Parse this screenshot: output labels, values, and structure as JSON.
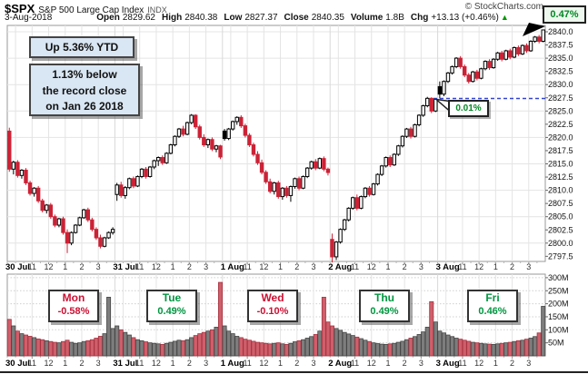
{
  "header": {
    "symbol": "$SPX",
    "name": "S&P 500 Large Cap Index",
    "exchange": "INDX",
    "copyright": "© StockCharts.com",
    "date": "3-Aug-2018",
    "quote": [
      {
        "label": "Open",
        "value": "2829.62"
      },
      {
        "label": "High",
        "value": "2840.38"
      },
      {
        "label": "Low",
        "value": "2827.37"
      },
      {
        "label": "Close",
        "value": "2840.35"
      },
      {
        "label": "Volume",
        "value": "1.8B"
      },
      {
        "label": "Chg",
        "value": "+13.13 (+0.46%)"
      }
    ],
    "up_arrow": "▲",
    "badge": "0.47%"
  },
  "annotations": {
    "ytd": "Up 5.36% YTD",
    "record_lines": [
      "1.13% below",
      "the record close",
      "on Jan 26 2018"
    ],
    "callout": "0.01%",
    "dashed_line_price": 2827.37
  },
  "colors": {
    "candle_down": "#cc2236",
    "candle_up_border": "#000000",
    "vol_down_fill": "#ce5f6b",
    "vol_down_border": "#a83240",
    "vol_up_fill": "#7d7d7d",
    "vol_up_border": "#454545",
    "text_up": "#009640",
    "text_down": "#cc1133",
    "dashed_line": "#3344cc",
    "grid": "#e4e4e4",
    "panel_border": "#9a9a9a"
  },
  "chart_data": {
    "type": "candlestick+volume",
    "timeframe": "15-minute intraday, 5 sessions",
    "price_axis": {
      "min": 2797.5,
      "max": 2840.0,
      "tick_step": 2.5,
      "ticks": [
        "2840.0",
        "2837.5",
        "2835.0",
        "2832.5",
        "2830.0",
        "2827.5",
        "2825.0",
        "2822.5",
        "2820.0",
        "2817.5",
        "2815.0",
        "2812.5",
        "2810.0",
        "2807.5",
        "2805.0",
        "2802.5",
        "2800.0",
        "2797.5"
      ]
    },
    "volume_axis": {
      "ticks": [
        "300M",
        "250M",
        "200M",
        "150M",
        "100M",
        "50M"
      ],
      "values": [
        300,
        250,
        200,
        150,
        100,
        50
      ]
    },
    "x_labels": {
      "hour_labels": [
        "11",
        "12",
        "1",
        "2",
        "3"
      ]
    },
    "days": [
      {
        "date": "30 Jul",
        "weekday": "Mon",
        "change_pct": "-0.58%",
        "direction": "down",
        "candles": [
          [
            2821.2,
            2821.84,
            2813.5,
            2814.0
          ],
          [
            2814.0,
            2815.6,
            2813.0,
            2815.3
          ],
          [
            2815.3,
            2815.7,
            2812.4,
            2812.8
          ],
          [
            2812.8,
            2814.0,
            2812.2,
            2813.8
          ],
          [
            2813.8,
            2814.2,
            2811.0,
            2811.4
          ],
          [
            2811.4,
            2811.8,
            2809.0,
            2809.4
          ],
          [
            2809.4,
            2810.6,
            2808.8,
            2810.4
          ],
          [
            2810.4,
            2810.8,
            2807.6,
            2808.0
          ],
          [
            2808.0,
            2808.4,
            2805.8,
            2806.2
          ],
          [
            2806.2,
            2807.4,
            2805.6,
            2807.2
          ],
          [
            2807.2,
            2807.6,
            2804.6,
            2805.0
          ],
          [
            2805.0,
            2805.4,
            2803.0,
            2803.4
          ],
          [
            2803.4,
            2804.8,
            2803.0,
            2804.6
          ],
          [
            2804.6,
            2805.0,
            2801.6,
            2802.0
          ],
          [
            2802.0,
            2802.6,
            2798.11,
            2800.0
          ],
          [
            2800.0,
            2802.2,
            2799.6,
            2802.0
          ],
          [
            2802.0,
            2803.6,
            2801.8,
            2803.4
          ],
          [
            2803.4,
            2805.0,
            2803.2,
            2804.8
          ],
          [
            2804.8,
            2806.5,
            2804.6,
            2806.3
          ],
          [
            2806.3,
            2806.7,
            2804.0,
            2804.4
          ],
          [
            2804.4,
            2804.8,
            2802.2,
            2802.6
          ],
          [
            2802.6,
            2803.0,
            2800.6,
            2801.0
          ],
          [
            2801.0,
            2801.6,
            2799.0,
            2799.4
          ],
          [
            2799.4,
            2801.2,
            2799.2,
            2801.0
          ],
          [
            2801.0,
            2802.2,
            2800.8,
            2802.0
          ],
          [
            2802.0,
            2803.0,
            2801.6,
            2802.6
          ]
        ],
        "volumes": [
          140,
          115,
          95,
          85,
          80,
          75,
          70,
          65,
          62,
          58,
          55,
          52,
          50,
          55,
          60,
          52,
          48,
          50,
          55,
          58,
          62,
          68,
          75,
          85,
          225,
          105
        ]
      },
      {
        "date": "31 Jul",
        "weekday": "Tue",
        "change_pct": "0.49%",
        "direction": "up",
        "candles": [
          [
            2809.2,
            2811.4,
            2808.0,
            2811.0
          ],
          [
            2811.0,
            2811.6,
            2808.6,
            2809.0
          ],
          [
            2809.0,
            2810.8,
            2808.4,
            2810.5
          ],
          [
            2810.5,
            2812.4,
            2810.2,
            2812.2
          ],
          [
            2812.2,
            2812.6,
            2810.4,
            2810.8
          ],
          [
            2810.8,
            2812.8,
            2810.6,
            2812.6
          ],
          [
            2812.6,
            2814.2,
            2812.3,
            2814.0
          ],
          [
            2814.0,
            2814.4,
            2812.2,
            2812.6
          ],
          [
            2812.6,
            2814.6,
            2812.4,
            2814.4
          ],
          [
            2814.4,
            2815.8,
            2814.0,
            2815.6
          ],
          [
            2815.6,
            2816.4,
            2814.6,
            2816.2
          ],
          [
            2816.2,
            2816.6,
            2814.8,
            2815.2
          ],
          [
            2815.2,
            2817.2,
            2815.0,
            2817.0
          ],
          [
            2817.0,
            2818.8,
            2816.8,
            2818.6
          ],
          [
            2818.6,
            2820.4,
            2818.3,
            2820.2
          ],
          [
            2820.2,
            2821.8,
            2819.9,
            2821.6
          ],
          [
            2821.6,
            2822.2,
            2820.2,
            2820.6
          ],
          [
            2820.6,
            2823.0,
            2820.4,
            2822.8
          ],
          [
            2822.8,
            2824.42,
            2822.5,
            2824.2
          ],
          [
            2824.2,
            2824.4,
            2821.6,
            2822.0
          ],
          [
            2822.0,
            2822.4,
            2819.6,
            2820.0
          ],
          [
            2820.0,
            2820.6,
            2818.2,
            2818.6
          ],
          [
            2818.6,
            2819.8,
            2818.0,
            2819.6
          ],
          [
            2819.6,
            2820.0,
            2817.4,
            2817.8
          ],
          [
            2817.8,
            2818.6,
            2817.2,
            2818.4
          ],
          [
            2818.4,
            2818.6,
            2815.9,
            2816.3
          ]
        ],
        "volumes": [
          115,
          100,
          90,
          80,
          70,
          62,
          58,
          54,
          50,
          48,
          46,
          44,
          48,
          52,
          56,
          60,
          58,
          62,
          70,
          78,
          85,
          90,
          95,
          100,
          110,
          282
        ]
      },
      {
        "date": "1 Aug",
        "weekday": "Wed",
        "change_pct": "-0.10%",
        "direction": "down",
        "candles": [
          [
            2821.2,
            2821.6,
            2819.4,
            2819.8
          ],
          [
            2819.8,
            2821.8,
            2819.5,
            2821.6
          ],
          [
            2821.6,
            2823.2,
            2821.3,
            2823.0
          ],
          [
            2823.0,
            2824.0,
            2822.4,
            2823.8
          ],
          [
            2823.8,
            2824.2,
            2821.8,
            2822.2
          ],
          [
            2822.2,
            2822.6,
            2820.0,
            2820.4
          ],
          [
            2820.4,
            2820.8,
            2818.2,
            2818.6
          ],
          [
            2818.6,
            2819.0,
            2816.4,
            2816.8
          ],
          [
            2816.8,
            2817.4,
            2814.8,
            2815.2
          ],
          [
            2815.2,
            2815.8,
            2813.0,
            2813.4
          ],
          [
            2813.4,
            2813.8,
            2811.2,
            2811.6
          ],
          [
            2811.6,
            2812.2,
            2809.4,
            2809.8
          ],
          [
            2809.8,
            2811.6,
            2809.2,
            2811.4
          ],
          [
            2811.4,
            2811.8,
            2808.4,
            2808.8
          ],
          [
            2808.8,
            2810.6,
            2808.2,
            2810.4
          ],
          [
            2810.4,
            2810.8,
            2808.6,
            2809.0
          ],
          [
            2809.0,
            2810.9,
            2807.82,
            2810.7
          ],
          [
            2810.7,
            2812.4,
            2810.3,
            2812.2
          ],
          [
            2812.2,
            2812.6,
            2810.0,
            2810.4
          ],
          [
            2810.4,
            2812.8,
            2810.2,
            2812.6
          ],
          [
            2812.6,
            2814.4,
            2812.3,
            2814.2
          ],
          [
            2814.2,
            2815.6,
            2813.9,
            2815.4
          ],
          [
            2815.4,
            2815.9,
            2813.8,
            2814.2
          ],
          [
            2814.2,
            2816.2,
            2814.0,
            2816.0
          ],
          [
            2816.0,
            2816.4,
            2813.6,
            2814.0
          ],
          [
            2814.0,
            2814.3,
            2812.8,
            2813.36
          ]
        ],
        "volumes": [
          115,
          95,
          85,
          75,
          70,
          64,
          60,
          56,
          52,
          50,
          48,
          46,
          48,
          50,
          46,
          44,
          48,
          54,
          58,
          62,
          68,
          74,
          82,
          95,
          225,
          130
        ]
      },
      {
        "date": "2 Aug",
        "weekday": "Thu",
        "change_pct": "0.49%",
        "direction": "up",
        "candles": [
          [
            2800.7,
            2801.8,
            2796.34,
            2797.4
          ],
          [
            2797.4,
            2800.4,
            2796.8,
            2800.2
          ],
          [
            2800.2,
            2802.8,
            2799.9,
            2802.6
          ],
          [
            2802.6,
            2804.6,
            2802.3,
            2804.4
          ],
          [
            2804.4,
            2806.8,
            2804.1,
            2806.6
          ],
          [
            2806.6,
            2808.8,
            2806.3,
            2808.6
          ],
          [
            2808.6,
            2809.2,
            2806.2,
            2806.6
          ],
          [
            2806.6,
            2809.0,
            2806.4,
            2808.8
          ],
          [
            2808.8,
            2810.6,
            2808.5,
            2810.4
          ],
          [
            2810.4,
            2810.8,
            2808.8,
            2809.2
          ],
          [
            2809.2,
            2811.4,
            2809.0,
            2811.2
          ],
          [
            2811.2,
            2813.2,
            2810.9,
            2813.0
          ],
          [
            2813.0,
            2814.8,
            2812.7,
            2814.6
          ],
          [
            2814.6,
            2816.4,
            2814.3,
            2816.2
          ],
          [
            2816.2,
            2816.6,
            2814.4,
            2814.8
          ],
          [
            2814.8,
            2817.0,
            2814.6,
            2816.8
          ],
          [
            2816.8,
            2818.6,
            2816.5,
            2818.4
          ],
          [
            2818.4,
            2820.4,
            2818.1,
            2820.2
          ],
          [
            2820.2,
            2821.8,
            2819.9,
            2821.6
          ],
          [
            2821.6,
            2822.0,
            2819.8,
            2820.2
          ],
          [
            2820.2,
            2822.6,
            2820.0,
            2822.4
          ],
          [
            2822.4,
            2824.4,
            2822.1,
            2824.2
          ],
          [
            2824.2,
            2826.2,
            2823.9,
            2826.0
          ],
          [
            2826.0,
            2827.68,
            2825.7,
            2827.4
          ],
          [
            2827.4,
            2827.6,
            2824.6,
            2825.0
          ],
          [
            2825.0,
            2827.4,
            2824.8,
            2827.22
          ]
        ],
        "volumes": [
          115,
          105,
          98,
          90,
          84,
          78,
          72,
          66,
          60,
          55,
          50,
          47,
          45,
          44,
          46,
          48,
          52,
          56,
          62,
          68,
          74,
          82,
          92,
          110,
          208,
          130
        ]
      },
      {
        "date": "3 Aug",
        "weekday": "Fri",
        "change_pct": "0.46%",
        "direction": "up",
        "candles": [
          [
            2829.62,
            2830.6,
            2827.37,
            2828.2
          ],
          [
            2828.2,
            2830.8,
            2827.8,
            2830.6
          ],
          [
            2830.6,
            2832.4,
            2830.3,
            2832.2
          ],
          [
            2832.2,
            2833.6,
            2831.9,
            2833.4
          ],
          [
            2833.4,
            2835.2,
            2833.1,
            2835.0
          ],
          [
            2835.0,
            2835.4,
            2833.0,
            2833.4
          ],
          [
            2833.4,
            2833.8,
            2831.4,
            2831.8
          ],
          [
            2831.8,
            2832.2,
            2830.2,
            2830.6
          ],
          [
            2830.6,
            2832.6,
            2830.4,
            2832.4
          ],
          [
            2832.4,
            2832.8,
            2830.8,
            2831.2
          ],
          [
            2831.2,
            2833.2,
            2831.0,
            2833.0
          ],
          [
            2833.0,
            2834.6,
            2832.7,
            2834.4
          ],
          [
            2834.4,
            2834.8,
            2832.8,
            2833.2
          ],
          [
            2833.2,
            2835.0,
            2833.0,
            2834.8
          ],
          [
            2834.8,
            2836.2,
            2834.5,
            2836.0
          ],
          [
            2836.0,
            2836.4,
            2834.4,
            2834.8
          ],
          [
            2834.8,
            2836.6,
            2834.6,
            2836.4
          ],
          [
            2836.4,
            2836.8,
            2834.8,
            2835.2
          ],
          [
            2835.2,
            2837.2,
            2835.0,
            2837.0
          ],
          [
            2837.0,
            2837.4,
            2835.4,
            2835.8
          ],
          [
            2835.8,
            2837.6,
            2835.6,
            2837.4
          ],
          [
            2837.4,
            2837.8,
            2836.0,
            2836.4
          ],
          [
            2836.4,
            2838.4,
            2836.2,
            2838.2
          ],
          [
            2838.2,
            2839.2,
            2837.9,
            2839.0
          ],
          [
            2839.0,
            2839.4,
            2837.8,
            2838.2
          ],
          [
            2838.2,
            2840.38,
            2838.0,
            2840.35
          ]
        ],
        "volumes": [
          95,
          88,
          80,
          74,
          68,
          64,
          60,
          56,
          52,
          50,
          48,
          46,
          45,
          44,
          46,
          48,
          50,
          52,
          55,
          58,
          60,
          64,
          68,
          74,
          88,
          190
        ]
      }
    ]
  }
}
